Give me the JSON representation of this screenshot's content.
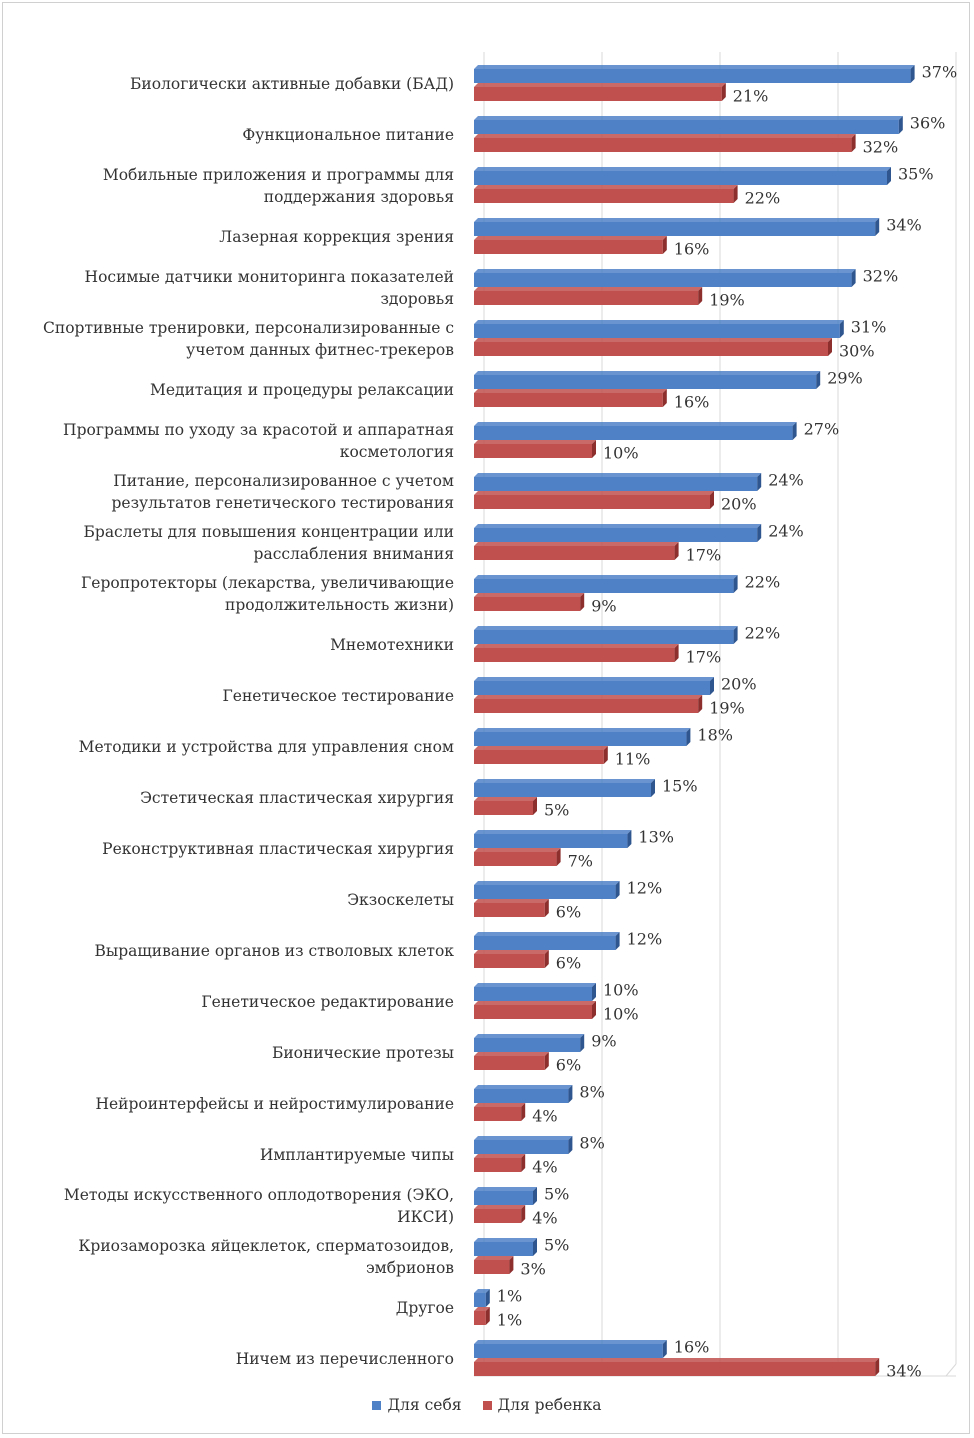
{
  "colors": {
    "series_self": "#4f81c7",
    "series_self_dark": "#2f568f",
    "series_child": "#c0504d",
    "series_child_dark": "#8c2f2d",
    "grid": "#d9d9d9",
    "text": "#333333"
  },
  "legend": {
    "self_label": "Для себя",
    "child_label": "Для ребенка"
  },
  "chart_data": {
    "type": "bar",
    "orientation": "horizontal",
    "xlim": [
      0,
      40
    ],
    "grid": true,
    "legend_position": "bottom",
    "categories": [
      "Биологически активные добавки (БАД)",
      "Функциональное питание",
      "Мобильные приложения и программы для поддержания здоровья",
      "Лазерная коррекция зрения",
      "Носимые датчики мониторинга показателей здоровья",
      "Спортивные тренировки, персонализированные с учетом данных фитнес-трекеров",
      "Медитация и процедуры релаксации",
      "Программы по уходу за красотой и аппаратная косметология",
      "Питание, персонализированное с учетом результатов генетического тестирования",
      "Браслеты для повышения концентрации или расслабления внимания",
      "Геропротекторы (лекарства, увеличивающие продолжительность жизни)",
      "Мнемотехники",
      "Генетическое тестирование",
      "Методики и устройства для управления сном",
      "Эстетическая пластическая хирургия",
      "Реконструктивная пластическая хирургия",
      "Экзоскелеты",
      "Выращивание органов из стволовых клеток",
      "Генетическое редактирование",
      "Бионические протезы",
      "Нейроинтерфейсы и нейростимулирование",
      "Имплантируемые чипы",
      "Методы искусственного оплодотворения (ЭКО, ИКСИ)",
      "Криозаморозка яйцеклеток, сперматозоидов, эмбрионов",
      "Другое",
      "Ничем из перечисленного"
    ],
    "series": [
      {
        "name": "Для себя",
        "values": [
          37,
          36,
          35,
          34,
          32,
          31,
          29,
          27,
          24,
          24,
          22,
          22,
          20,
          18,
          15,
          13,
          12,
          12,
          10,
          9,
          8,
          8,
          5,
          5,
          1,
          16
        ],
        "labels": [
          "37%",
          "36%",
          "35%",
          "34%",
          "32%",
          "31%",
          "29%",
          "27%",
          "24%",
          "24%",
          "22%",
          "22%",
          "20%",
          "18%",
          "15%",
          "13%",
          "12%",
          "12%",
          "10%",
          "9%",
          "8%",
          "8%",
          "5%",
          "5%",
          "1%",
          "16%"
        ]
      },
      {
        "name": "Для ребенка",
        "values": [
          21,
          32,
          22,
          16,
          19,
          30,
          16,
          10,
          20,
          17,
          9,
          17,
          19,
          11,
          5,
          7,
          6,
          6,
          10,
          6,
          4,
          4,
          4,
          3,
          1,
          34
        ],
        "labels": [
          "21%",
          "32%",
          "22%",
          "16%",
          "19%",
          "30%",
          "16%",
          "10%",
          "20%",
          "17%",
          "9%",
          "17%",
          "19%",
          "11%",
          "5%",
          "7%",
          "6%",
          "6%",
          "10%",
          "6%",
          "4%",
          "4%",
          "4%",
          "3%",
          "1%",
          "34%"
        ]
      }
    ]
  }
}
